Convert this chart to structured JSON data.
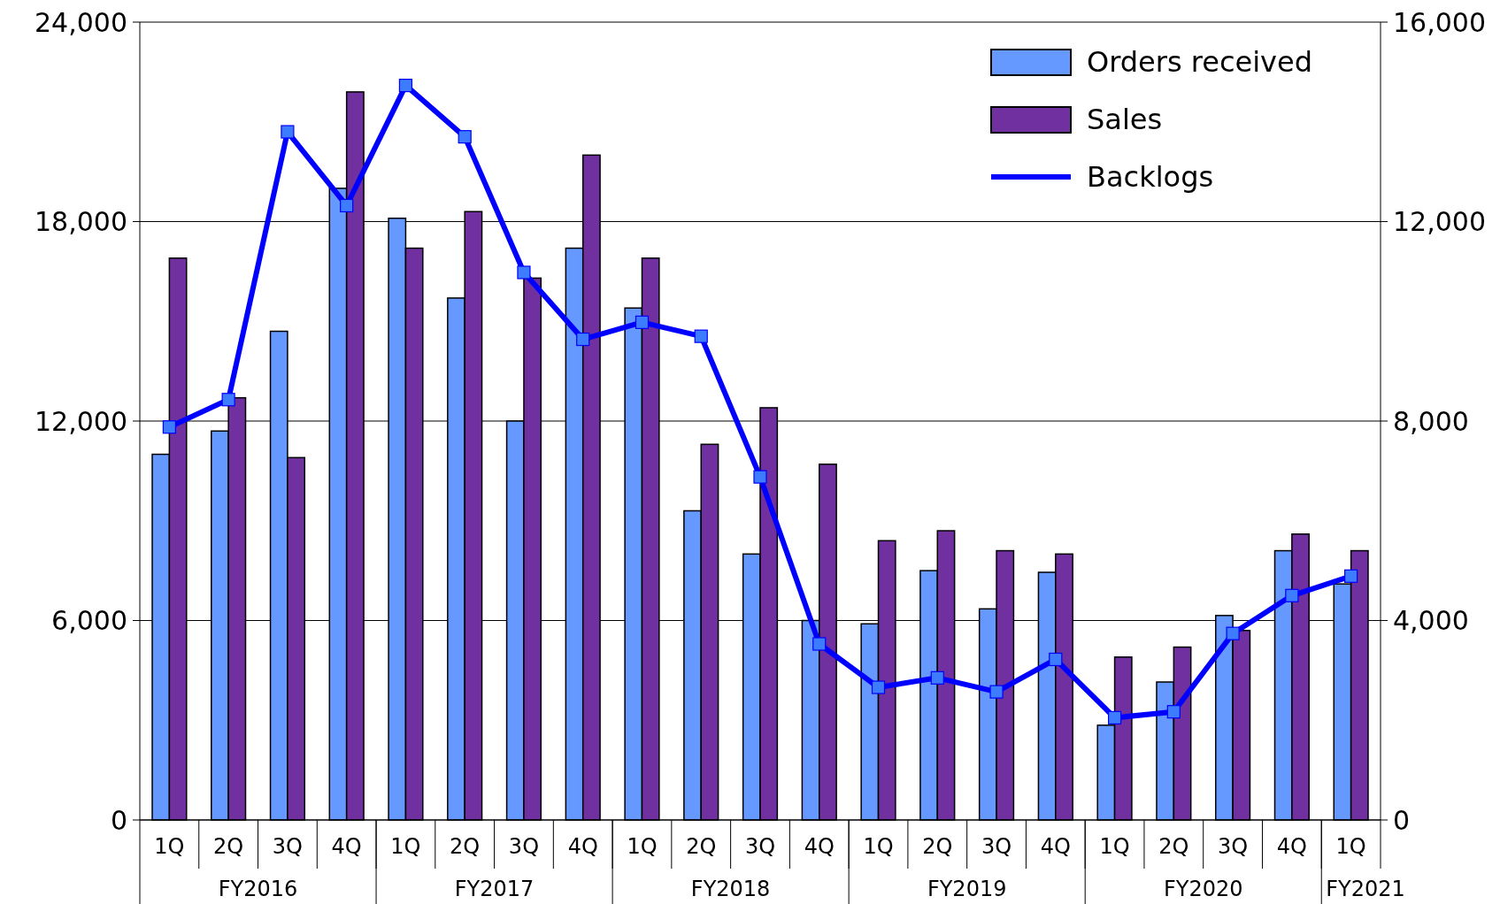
{
  "chart_data": {
    "type": "bar",
    "categories": [
      "1Q",
      "2Q",
      "3Q",
      "4Q",
      "1Q",
      "2Q",
      "3Q",
      "4Q",
      "1Q",
      "2Q",
      "3Q",
      "4Q",
      "1Q",
      "2Q",
      "3Q",
      "4Q",
      "1Q",
      "2Q",
      "3Q",
      "4Q",
      "1Q"
    ],
    "series": [
      {
        "name": "Orders received",
        "color": "#6699ff",
        "values": [
          11000,
          11700,
          14700,
          19000,
          18100,
          15700,
          12000,
          17200,
          15400,
          9300,
          8000,
          6000,
          5900,
          7500,
          6350,
          7450,
          2850,
          4150,
          6150,
          8100,
          7100
        ]
      },
      {
        "name": "Sales",
        "color": "#7030a0",
        "values": [
          16900,
          12700,
          10900,
          21900,
          17200,
          18300,
          16300,
          20000,
          16900,
          11300,
          12400,
          10700,
          8400,
          8700,
          8100,
          8000,
          4900,
          5200,
          5700,
          8600,
          8100
        ]
      },
      {
        "name": "Backlogs",
        "type": "line",
        "axis": "y2",
        "color": "#0000ff",
        "values": [
          7880,
          8430,
          13800,
          12320,
          14730,
          13700,
          10980,
          9640,
          9980,
          9700,
          6880,
          3530,
          2660,
          2850,
          2570,
          3220,
          2050,
          2170,
          3740,
          4500,
          4890
        ]
      }
    ],
    "ylim": [
      0,
      24000
    ],
    "yticks": [
      {
        "value": 0,
        "label": "0"
      },
      {
        "value": 6000,
        "label": "6,000"
      },
      {
        "value": 12000,
        "label": "12,000"
      },
      {
        "value": 18000,
        "label": "18,000"
      },
      {
        "value": 24000,
        "label": "24,000"
      }
    ],
    "y2lim": [
      0,
      16000
    ],
    "y2ticks": [
      {
        "value": 0,
        "label": "0"
      },
      {
        "value": 4000,
        "label": "4,000"
      },
      {
        "value": 8000,
        "label": "8,000"
      },
      {
        "value": 12000,
        "label": "12,000"
      },
      {
        "value": 16000,
        "label": "16,000"
      }
    ],
    "annotations": [
      "FY2016",
      "FY2017",
      "FY2018",
      "FY2019",
      "FY2020",
      "FY2021"
    ],
    "grid": "y",
    "legend": "top right",
    "marker": "square",
    "line_style": "solid"
  }
}
